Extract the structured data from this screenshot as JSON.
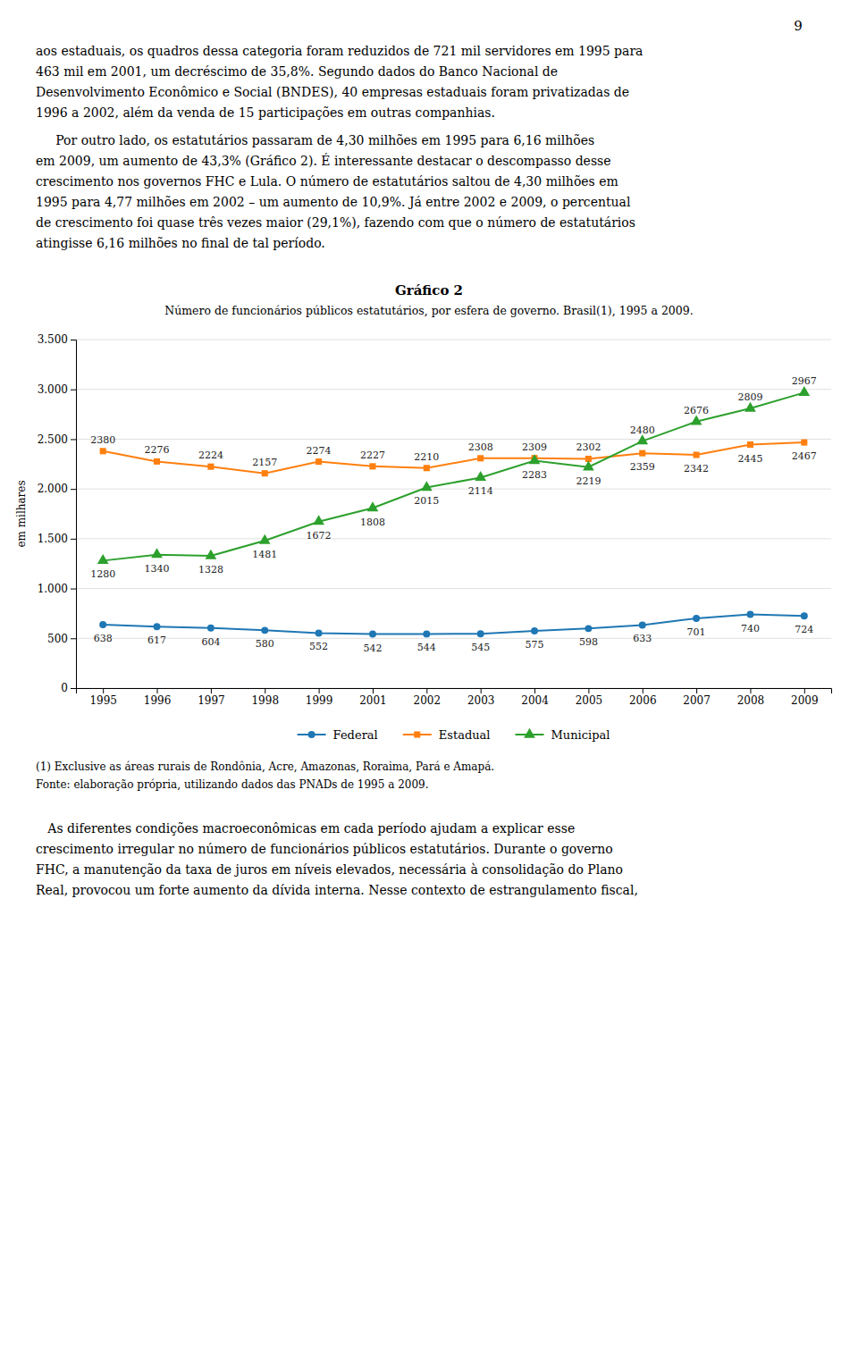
{
  "page_number": "9",
  "text_before": [
    [
      "aos estaduais, os quadros dessa categoria foram reduzidos de 721 mil servidores em 1995 para",
      "463 mil em 2001, um decréscimo de 35,8%. Segundo dados do Banco Nacional de",
      "Desenvolvimento Econômico e Social (BNDES), 40 empresas estaduais foram privatizadas de",
      "1996 a 2002, além da venda de 15 participações em outras companhias."
    ],
    [
      "     Por outro lado, os estatutários passaram de 4,30 milhões em 1995 para 6,16 milhões",
      "em 2009, um aumento de 43,3% (Gráfico 2). É interessante destacar o descompasso desse",
      "crescimento nos governos FHC e Lula. O número de estatutários saltou de 4,30 milhões em",
      "1995 para 4,77 milhões em 2002 – um aumento de 10,9%. Já entre 2002 e 2009, o percentual",
      "de crescimento foi quase três vezes maior (29,1%), fazendo com que o número de estatutários",
      "atingisse 6,16 milhões no final de tal período."
    ]
  ],
  "chart_data": {
    "type": "line",
    "title": "Gráfico 2",
    "subtitle": "Número de funcionários públicos estatutários, por esfera de governo. Brasil(1), 1995 a 2009.",
    "ylabel": "em milhares",
    "categories": [
      "1995",
      "1996",
      "1997",
      "1998",
      "1999",
      "2001",
      "2002",
      "2003",
      "2004",
      "2005",
      "2006",
      "2007",
      "2008",
      "2009"
    ],
    "series": [
      {
        "name": "Federal",
        "marker": "circle",
        "values": [
          638,
          617,
          604,
          580,
          552,
          542,
          544,
          545,
          575,
          598,
          633,
          701,
          740,
          724
        ]
      },
      {
        "name": "Estadual",
        "marker": "square",
        "values": [
          2380,
          2276,
          2224,
          2157,
          2274,
          2227,
          2210,
          2308,
          2309,
          2302,
          2359,
          2342,
          2445,
          2467
        ]
      },
      {
        "name": "Municipal",
        "marker": "triangle",
        "values": [
          1280,
          1340,
          1328,
          1481,
          1672,
          1808,
          2015,
          2114,
          2283,
          2219,
          2480,
          2676,
          2809,
          2967
        ]
      }
    ],
    "ylim": [
      0,
      3500
    ],
    "yticks": [
      0,
      500,
      {
        "value": 1000,
        "label": "1.000"
      },
      {
        "value": 1500,
        "label": "1.500"
      },
      {
        "value": 2000,
        "label": "2.000"
      },
      {
        "value": 2500,
        "label": "2.500"
      },
      {
        "value": 3000,
        "label": "3.000"
      },
      {
        "value": 3500,
        "label": "3.500"
      }
    ],
    "grid": true,
    "data_labels": true,
    "legend": "bottom"
  },
  "footnotes": [
    "(1) Exclusive as áreas rurais de Rondônia, Acre, Amazonas, Roraima, Pará e Amapá.",
    "Fonte: elaboração própria, utilizando dados das PNADs de 1995 a 2009."
  ],
  "text_after": [
    [
      "   As diferentes condições macroeconômicas em cada período ajudam a explicar esse",
      "crescimento irregular no número de funcionários públicos estatutários. Durante o governo",
      "FHC, a manutenção da taxa de juros em níveis elevados, necessária à consolidação do Plano",
      "Real, provocou um forte aumento da dívida interna. Nesse contexto de estrangulamento fiscal,"
    ]
  ]
}
